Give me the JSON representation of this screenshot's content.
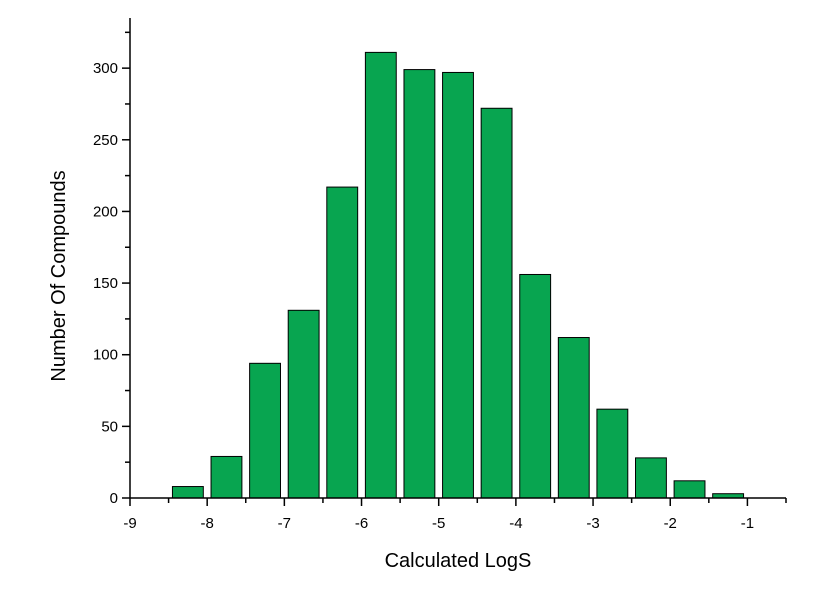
{
  "chart_data": {
    "type": "bar",
    "xlabel": "Calculated LogS",
    "ylabel": "Number Of Compounds",
    "xlim": [
      -9,
      -0.5
    ],
    "ylim": [
      0,
      335
    ],
    "bar_width": 0.4,
    "x": [
      -8.25,
      -7.75,
      -7.25,
      -6.75,
      -6.25,
      -5.75,
      -5.25,
      -4.75,
      -4.25,
      -3.75,
      -3.25,
      -2.75,
      -2.25,
      -1.75,
      -1.25
    ],
    "values": [
      8,
      29,
      94,
      131,
      217,
      311,
      299,
      297,
      272,
      156,
      112,
      62,
      28,
      12,
      3
    ],
    "xticks": [
      -9,
      -8,
      -7,
      -6,
      -5,
      -4,
      -3,
      -2,
      -1
    ],
    "xtick_labels": [
      "-9",
      "-8",
      "-7",
      "-6",
      "-5",
      "-4",
      "-3",
      "-2",
      "-1"
    ],
    "yticks": [
      0,
      50,
      100,
      150,
      200,
      250,
      300
    ],
    "ytick_labels": [
      "0",
      "50",
      "100",
      "150",
      "200",
      "250",
      "300"
    ],
    "bar_color": "#08a550",
    "bar_edge_color": "#000000",
    "grid": false,
    "legend": "none"
  }
}
